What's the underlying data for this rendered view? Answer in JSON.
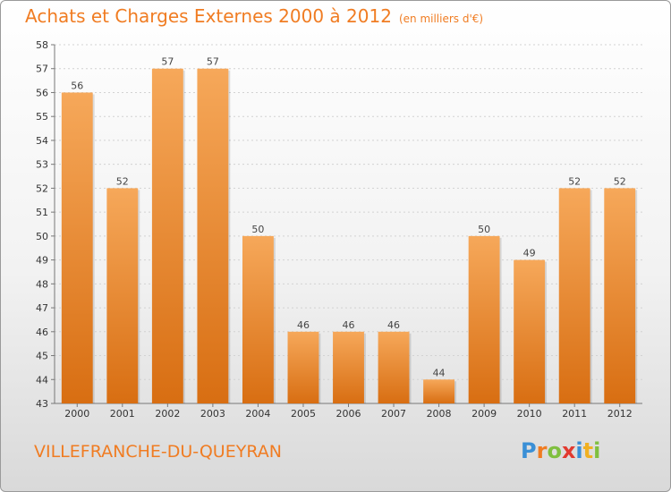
{
  "title": {
    "main": "Achats et Charges Externes 2000 à 2012",
    "unit": "(en milliers d'€)"
  },
  "footer": {
    "city": "VILLEFRANCHE-DU-QUEYRAN"
  },
  "logo": {
    "letters": [
      "P",
      "r",
      "o",
      "x",
      "i",
      "t",
      "i"
    ],
    "colors": [
      "#3a8fd6",
      "#f07c22",
      "#7fbf3f",
      "#e23a2f",
      "#3a8fd6",
      "#f0b022",
      "#7fbf3f"
    ]
  },
  "colors": {
    "bar_top": "#f6a85a",
    "bar_bottom": "#d86e12",
    "title": "#f07c22"
  },
  "chart_data": {
    "type": "bar",
    "categories": [
      "2000",
      "2001",
      "2002",
      "2003",
      "2004",
      "2005",
      "2006",
      "2007",
      "2008",
      "2009",
      "2010",
      "2011",
      "2012"
    ],
    "values": [
      56,
      52,
      57,
      57,
      50,
      46,
      46,
      46,
      44,
      50,
      49,
      52,
      52
    ],
    "ylim": [
      43,
      58
    ],
    "yticks": [
      43,
      44,
      45,
      46,
      47,
      48,
      49,
      50,
      51,
      52,
      53,
      54,
      55,
      56,
      57,
      58
    ],
    "grid": true,
    "data_labels": true
  }
}
